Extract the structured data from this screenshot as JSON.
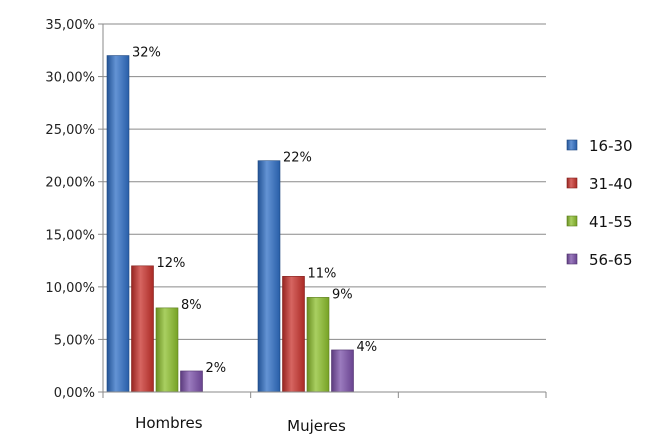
{
  "chart_data": {
    "type": "bar",
    "title": "",
    "xlabel": "",
    "ylabel": "",
    "categories": [
      "Hombres",
      "Mujeres"
    ],
    "ylim": [
      0,
      0.35
    ],
    "yticks": [
      0,
      0.05,
      0.1,
      0.15,
      0.2,
      0.25,
      0.3,
      0.35
    ],
    "ytick_labels": [
      "0,00%",
      "5,00%",
      "10,00%",
      "15,00%",
      "20,00%",
      "25,00%",
      "30,00%",
      "35,00%"
    ],
    "grid": true,
    "legend_position": "right",
    "series": [
      {
        "name": "16-30",
        "values": [
          0.32,
          0.22
        ],
        "labels": [
          "32%",
          "22%"
        ],
        "color": "#2f6fc6"
      },
      {
        "name": "31-40",
        "values": [
          0.12,
          0.11
        ],
        "labels": [
          "12%",
          "11%"
        ],
        "color": "#c8312c"
      },
      {
        "name": "41-55",
        "values": [
          0.08,
          0.09
        ],
        "labels": [
          "8%",
          "9%"
        ],
        "color": "#8cbf2c"
      },
      {
        "name": "56-65",
        "values": [
          0.02,
          0.04
        ],
        "labels": [
          "2%",
          "4%"
        ],
        "color": "#7a4fa8"
      }
    ]
  }
}
